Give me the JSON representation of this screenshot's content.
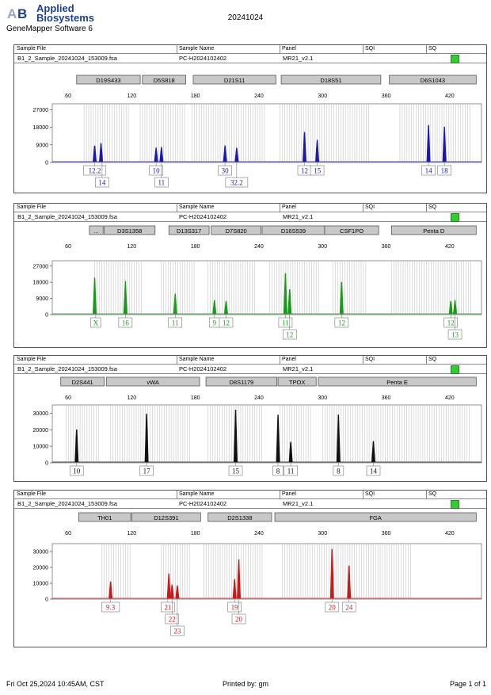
{
  "header": {
    "logo_line1": "Applied",
    "logo_line2": "Biosystems",
    "software": "GeneMapper Software 6",
    "date": "20241024",
    "brand_color": "#1f3f93"
  },
  "table_headers": [
    "Sample File",
    "Sample Name",
    "Panel",
    "SQI",
    "SQ"
  ],
  "footer": {
    "printed_on": "Fri Oct 25,2024 10:45AM, CST",
    "printed_by": "Printed by: gm",
    "page": "Page 1 of 1"
  },
  "chart_data": [
    {
      "type": "line",
      "sample_file": "B1_2_Sample_20241024_153009.fsa",
      "sample_name": "PC-H2024102402",
      "panel_name": "MR21_v2.1",
      "color": "#1a1aa6",
      "xlim": [
        45,
        450
      ],
      "xticks": [
        60,
        120,
        180,
        240,
        300,
        360,
        420
      ],
      "ylim": [
        0,
        30000
      ],
      "yticks": [
        0,
        9000,
        18000,
        27000
      ],
      "markers": [
        {
          "name": "D19S433",
          "start": 68,
          "end": 128
        },
        {
          "name": "D5S818",
          "start": 130,
          "end": 171
        },
        {
          "name": "D21S11",
          "start": 178,
          "end": 256
        },
        {
          "name": "D18S51",
          "start": 261,
          "end": 355
        },
        {
          "name": "D6S1043",
          "start": 363,
          "end": 445
        }
      ],
      "bins": [
        {
          "start": 75,
          "end": 117
        },
        {
          "start": 128,
          "end": 170
        },
        {
          "start": 177,
          "end": 246
        },
        {
          "start": 260,
          "end": 345
        },
        {
          "start": 373,
          "end": 440
        }
      ],
      "peaks": [
        {
          "x": 85,
          "height": 8500
        },
        {
          "x": 91,
          "height": 9800
        },
        {
          "x": 143,
          "height": 7500
        },
        {
          "x": 148,
          "height": 7800
        },
        {
          "x": 208,
          "height": 8600
        },
        {
          "x": 219,
          "height": 7400
        },
        {
          "x": 283,
          "height": 15500
        },
        {
          "x": 295,
          "height": 11500
        },
        {
          "x": 400,
          "height": 19000
        },
        {
          "x": 415,
          "height": 18200
        }
      ],
      "labels": [
        {
          "text": "12.2",
          "x": 85,
          "row": 0
        },
        {
          "text": "14",
          "x": 92,
          "row": 1
        },
        {
          "text": "10",
          "x": 143,
          "row": 0
        },
        {
          "text": "11",
          "x": 148,
          "row": 1
        },
        {
          "text": "30",
          "x": 208,
          "row": 0
        },
        {
          "text": "32.2",
          "x": 219,
          "row": 1
        },
        {
          "text": "12",
          "x": 283,
          "row": 0
        },
        {
          "text": "15",
          "x": 295,
          "row": 0
        },
        {
          "text": "14",
          "x": 400,
          "row": 0
        },
        {
          "text": "18",
          "x": 415,
          "row": 0
        }
      ]
    },
    {
      "type": "line",
      "sample_file": "B1_2_Sample_20241024_153009.fsa",
      "sample_name": "PC-H2024102402",
      "panel_name": "MR21_v2.1",
      "color": "#1a9a1a",
      "xlim": [
        45,
        450
      ],
      "xticks": [
        60,
        120,
        180,
        240,
        300,
        360,
        420
      ],
      "ylim": [
        0,
        30000
      ],
      "yticks": [
        0,
        9000,
        18000,
        27000
      ],
      "markers": [
        {
          "name": "...",
          "start": 80,
          "end": 93
        },
        {
          "name": "D3S1358",
          "start": 94,
          "end": 142
        },
        {
          "name": "D13S317",
          "start": 155,
          "end": 193
        },
        {
          "name": "D7S820",
          "start": 195,
          "end": 242
        },
        {
          "name": "D16S539",
          "start": 243,
          "end": 302
        },
        {
          "name": "CSF1PO",
          "start": 302,
          "end": 353
        },
        {
          "name": "Penta D",
          "start": 365,
          "end": 445
        }
      ],
      "bins": [
        {
          "start": 85,
          "end": 130
        },
        {
          "start": 148,
          "end": 180
        },
        {
          "start": 192,
          "end": 236
        },
        {
          "start": 250,
          "end": 298
        },
        {
          "start": 310,
          "end": 342
        },
        {
          "start": 365,
          "end": 440
        }
      ],
      "peaks": [
        {
          "x": 85,
          "height": 20500
        },
        {
          "x": 114,
          "height": 18500
        },
        {
          "x": 161,
          "height": 11500
        },
        {
          "x": 198,
          "height": 8000
        },
        {
          "x": 209,
          "height": 7500
        },
        {
          "x": 265,
          "height": 23000
        },
        {
          "x": 269,
          "height": 14000
        },
        {
          "x": 318,
          "height": 18000
        },
        {
          "x": 421,
          "height": 7500
        },
        {
          "x": 425,
          "height": 8000
        }
      ],
      "labels": [
        {
          "text": "X",
          "x": 86,
          "row": 0
        },
        {
          "text": "16",
          "x": 114,
          "row": 0
        },
        {
          "text": "11",
          "x": 161,
          "row": 0
        },
        {
          "text": "9",
          "x": 198,
          "row": 0
        },
        {
          "text": "12",
          "x": 209,
          "row": 0
        },
        {
          "text": "11",
          "x": 265,
          "row": 0
        },
        {
          "text": "12",
          "x": 269,
          "row": 1
        },
        {
          "text": "12",
          "x": 318,
          "row": 0
        },
        {
          "text": "12",
          "x": 421,
          "row": 0
        },
        {
          "text": "13",
          "x": 425,
          "row": 1
        }
      ]
    },
    {
      "type": "line",
      "sample_file": "B1_2_Sample_20241024_153009.fsa",
      "sample_name": "PC-H2024102402",
      "panel_name": "MR21_v2.1",
      "color": "#111111",
      "xlim": [
        45,
        450
      ],
      "xticks": [
        60,
        120,
        180,
        240,
        300,
        360,
        420
      ],
      "ylim": [
        0,
        35000
      ],
      "yticks": [
        0,
        10000,
        20000,
        30000
      ],
      "markers": [
        {
          "name": "D2S441",
          "start": 53,
          "end": 94
        },
        {
          "name": "vWA",
          "start": 96,
          "end": 184
        },
        {
          "name": "D8S1179",
          "start": 190,
          "end": 257
        },
        {
          "name": "TPOX",
          "start": 258,
          "end": 294
        },
        {
          "name": "Penta E",
          "start": 296,
          "end": 445
        }
      ],
      "bins": [
        {
          "start": 58,
          "end": 90
        },
        {
          "start": 100,
          "end": 176
        },
        {
          "start": 192,
          "end": 244
        },
        {
          "start": 260,
          "end": 290
        },
        {
          "start": 300,
          "end": 440
        }
      ],
      "peaks": [
        {
          "x": 68,
          "height": 20000
        },
        {
          "x": 134,
          "height": 29500
        },
        {
          "x": 218,
          "height": 32000
        },
        {
          "x": 258,
          "height": 29000
        },
        {
          "x": 270,
          "height": 12500
        },
        {
          "x": 315,
          "height": 29000
        },
        {
          "x": 348,
          "height": 13000
        }
      ],
      "labels": [
        {
          "text": "10",
          "x": 68,
          "row": 0
        },
        {
          "text": "17",
          "x": 134,
          "row": 0
        },
        {
          "text": "15",
          "x": 218,
          "row": 0
        },
        {
          "text": "8",
          "x": 258,
          "row": 0
        },
        {
          "text": "11",
          "x": 270,
          "row": 0
        },
        {
          "text": "8",
          "x": 315,
          "row": 0
        },
        {
          "text": "14",
          "x": 348,
          "row": 0
        }
      ]
    },
    {
      "type": "line",
      "sample_file": "B1_2_Sample_20241024_153009.fsa",
      "sample_name": "PC-H2024102402",
      "panel_name": "MR21_v2.1",
      "color": "#c21c1c",
      "xlim": [
        45,
        450
      ],
      "xticks": [
        60,
        120,
        180,
        240,
        300,
        360,
        420
      ],
      "ylim": [
        0,
        35000
      ],
      "yticks": [
        0,
        10000,
        20000,
        30000
      ],
      "markers": [
        {
          "name": "TH01",
          "start": 70,
          "end": 119
        },
        {
          "name": "D12S391",
          "start": 120,
          "end": 185
        },
        {
          "name": "D2S1338",
          "start": 192,
          "end": 252
        },
        {
          "name": "FGA",
          "start": 255,
          "end": 445
        }
      ],
      "bins": [
        {
          "start": 92,
          "end": 120
        },
        {
          "start": 148,
          "end": 175
        },
        {
          "start": 188,
          "end": 244
        },
        {
          "start": 262,
          "end": 385
        }
      ],
      "peaks": [
        {
          "x": 100,
          "height": 11000
        },
        {
          "x": 155,
          "height": 16000
        },
        {
          "x": 158,
          "height": 9000
        },
        {
          "x": 163,
          "height": 8500
        },
        {
          "x": 217,
          "height": 12500
        },
        {
          "x": 221,
          "height": 25000
        },
        {
          "x": 309,
          "height": 31500
        },
        {
          "x": 325,
          "height": 21000
        }
      ],
      "labels": [
        {
          "text": "9.3",
          "x": 100,
          "row": 0
        },
        {
          "text": "21",
          "x": 154,
          "row": 0
        },
        {
          "text": "22",
          "x": 158,
          "row": 1
        },
        {
          "text": "23",
          "x": 163,
          "row": 2
        },
        {
          "text": "19",
          "x": 217,
          "row": 0
        },
        {
          "text": "20",
          "x": 221,
          "row": 1
        },
        {
          "text": "20",
          "x": 309,
          "row": 0
        },
        {
          "text": "24",
          "x": 325,
          "row": 0
        }
      ]
    }
  ]
}
